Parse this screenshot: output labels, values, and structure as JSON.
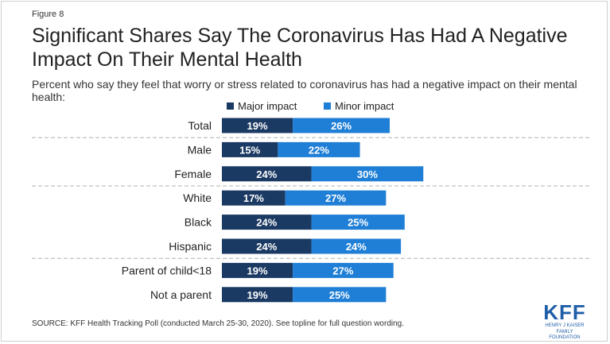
{
  "figure_label": "Figure 8",
  "title": "Significant Shares Say The Coronavirus Has Had A Negative Impact On Their Mental Health",
  "subtitle": "Percent who say they feel that worry or stress related to coronavirus has had a negative impact on their mental health:",
  "source": "SOURCE: KFF Health Tracking Poll (conducted March 25-30, 2020). See topline for full question wording.",
  "logo": {
    "main": "KFF",
    "sub_line1": "HENRY J KAISER",
    "sub_line2": "FAMILY FOUNDATION"
  },
  "colors": {
    "major": "#1b3a63",
    "minor": "#1f7fd6",
    "label_text": "#ffffff",
    "divider": "#b0b0b0"
  },
  "chart_data": {
    "type": "bar",
    "orientation": "horizontal",
    "stacked": true,
    "categories": [
      "Total",
      "Male",
      "Female",
      "White",
      "Black",
      "Hispanic",
      "Parent of child<18",
      "Not a parent"
    ],
    "series": [
      {
        "name": "Major impact",
        "values": [
          19,
          15,
          24,
          17,
          24,
          24,
          19,
          19
        ]
      },
      {
        "name": "Minor impact",
        "values": [
          26,
          22,
          30,
          27,
          25,
          24,
          27,
          25
        ]
      }
    ],
    "data_labels": [
      [
        "19%",
        "15%",
        "24%",
        "17%",
        "24%",
        "24%",
        "19%",
        "19%"
      ],
      [
        "26%",
        "22%",
        "30%",
        "27%",
        "25%",
        "24%",
        "27%",
        "25%"
      ]
    ],
    "group_breaks_after": [
      "Total",
      "Female",
      "Hispanic"
    ],
    "legend_position": "top",
    "grid": false
  }
}
